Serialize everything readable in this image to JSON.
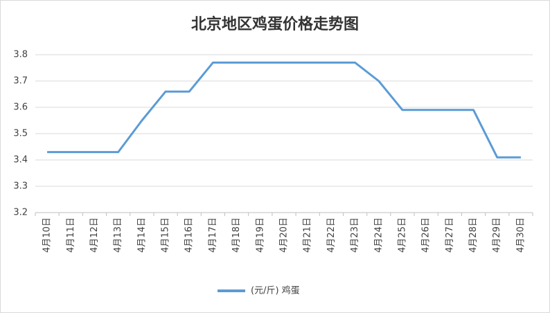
{
  "chart_data": {
    "type": "line",
    "title": "北京地区鸡蛋价格走势图",
    "categories": [
      "4月10日",
      "4月11日",
      "4月12日",
      "4月13日",
      "4月14日",
      "4月15日",
      "4月16日",
      "4月17日",
      "4月18日",
      "4月19日",
      "4月20日",
      "4月21日",
      "4月22日",
      "4月23日",
      "4月24日",
      "4月25日",
      "4月26日",
      "4月27日",
      "4月28日",
      "4月29日",
      "4月30日"
    ],
    "series": [
      {
        "name": "(元/斤) 鸡蛋",
        "color": "#5b9bd5",
        "values": [
          3.43,
          3.43,
          3.43,
          3.43,
          3.55,
          3.66,
          3.66,
          3.77,
          3.77,
          3.77,
          3.77,
          3.77,
          3.77,
          3.77,
          3.7,
          3.59,
          3.59,
          3.59,
          3.59,
          3.41,
          3.41
        ]
      }
    ],
    "ylim": [
      3.2,
      3.8
    ],
    "yticks": [
      3.2,
      3.3,
      3.4,
      3.5,
      3.6,
      3.7,
      3.8
    ],
    "grid": true,
    "legend": "bottom"
  }
}
